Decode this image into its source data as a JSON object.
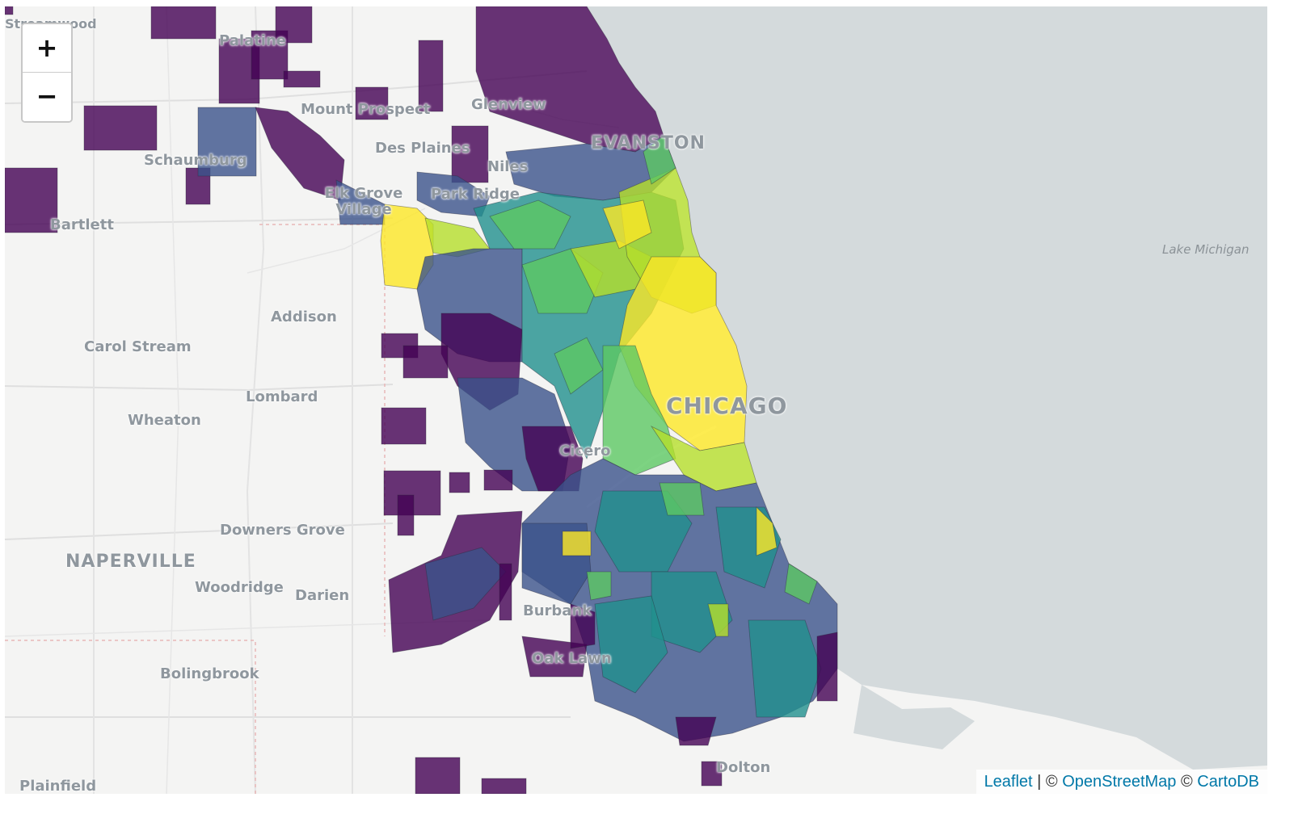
{
  "map": {
    "place_labels": [
      {
        "id": "palatine",
        "text": "Palatine",
        "cls": ""
      },
      {
        "id": "mount-prospect",
        "text": "Mount Prospect",
        "cls": ""
      },
      {
        "id": "glenview",
        "text": "Glenview",
        "cls": ""
      },
      {
        "id": "des-plaines",
        "text": "Des Plaines",
        "cls": ""
      },
      {
        "id": "evanston",
        "text": "EVANSTON",
        "cls": "big"
      },
      {
        "id": "schaumburg",
        "text": "Schaumburg",
        "cls": ""
      },
      {
        "id": "niles",
        "text": "Niles",
        "cls": ""
      },
      {
        "id": "elk-grove-village",
        "text": "Elk Grove Village",
        "cls": ""
      },
      {
        "id": "park-ridge",
        "text": "Park Ridge",
        "cls": ""
      },
      {
        "id": "bartlett",
        "text": "Bartlett",
        "cls": ""
      },
      {
        "id": "addison",
        "text": "Addison",
        "cls": ""
      },
      {
        "id": "carol-stream",
        "text": "Carol Stream",
        "cls": ""
      },
      {
        "id": "lombard",
        "text": "Lombard",
        "cls": ""
      },
      {
        "id": "wheaton",
        "text": "Wheaton",
        "cls": ""
      },
      {
        "id": "chicago",
        "text": "CHICAGO",
        "cls": "big"
      },
      {
        "id": "cicero",
        "text": "Cicero",
        "cls": ""
      },
      {
        "id": "downers-grove",
        "text": "Downers Grove",
        "cls": ""
      },
      {
        "id": "naperville",
        "text": "NAPERVILLE",
        "cls": "big"
      },
      {
        "id": "woodridge",
        "text": "Woodridge",
        "cls": ""
      },
      {
        "id": "darien",
        "text": "Darien",
        "cls": ""
      },
      {
        "id": "burbank",
        "text": "Burbank",
        "cls": ""
      },
      {
        "id": "oak-lawn",
        "text": "Oak Lawn",
        "cls": ""
      },
      {
        "id": "bolingbrook",
        "text": "Bolingbrook",
        "cls": ""
      },
      {
        "id": "dolton",
        "text": "Dolton",
        "cls": ""
      },
      {
        "id": "plainfield",
        "text": "Plainfield",
        "cls": ""
      },
      {
        "id": "lake-michigan",
        "text": "Lake Michigan",
        "cls": "water"
      },
      {
        "id": "streamwood",
        "text": "Streamwood",
        "cls": ""
      }
    ],
    "colors": {
      "land": "#f4f4f3",
      "water": "#d4dadc",
      "choropleth_scale": [
        "#440154",
        "#3b528b",
        "#21908d",
        "#5dc863",
        "#fde725"
      ]
    }
  },
  "zoom_control": {
    "zoom_in_label": "+",
    "zoom_out_label": "−"
  },
  "attribution": {
    "leaflet": "Leaflet",
    "sep1": " | © ",
    "osm": "OpenStreetMap",
    "sep2": " © ",
    "carto": "CartoDB"
  }
}
